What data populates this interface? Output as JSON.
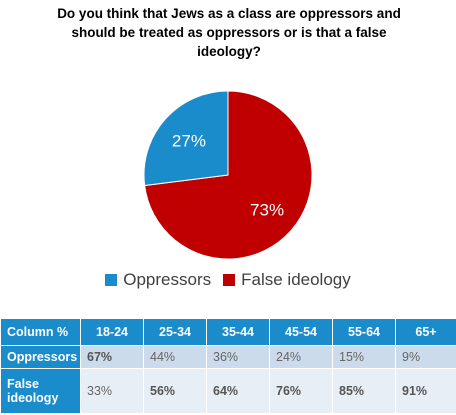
{
  "title": "Do you think that Jews as a class are oppressors and should be treated as oppressors or is that a false ideology?",
  "colors": {
    "oppressors": "#1a8ccc",
    "false_ideology": "#c00000",
    "header": "#1a8ccc"
  },
  "chart_data": {
    "type": "pie",
    "title": "Do you think that Jews as a class are oppressors and should be treated as oppressors or is that a false ideology?",
    "slices": [
      {
        "name": "Oppressors",
        "value": 27,
        "label": "27%"
      },
      {
        "name": "False ideology",
        "value": 73,
        "label": "73%"
      }
    ],
    "legend": [
      "Oppressors",
      "False ideology"
    ],
    "legend_position": "bottom"
  },
  "table": {
    "corner": "Column %",
    "columns": [
      "18-24",
      "25-34",
      "35-44",
      "45-54",
      "55-64",
      "65+"
    ],
    "rows": [
      {
        "label": "Oppressors",
        "values": [
          "67%",
          "44%",
          "36%",
          "24%",
          "15%",
          "9%"
        ],
        "bold": [
          true,
          false,
          false,
          false,
          false,
          false
        ]
      },
      {
        "label": "False ideology",
        "values": [
          "33%",
          "56%",
          "64%",
          "76%",
          "85%",
          "91%"
        ],
        "bold": [
          false,
          true,
          true,
          true,
          true,
          true
        ]
      }
    ]
  }
}
